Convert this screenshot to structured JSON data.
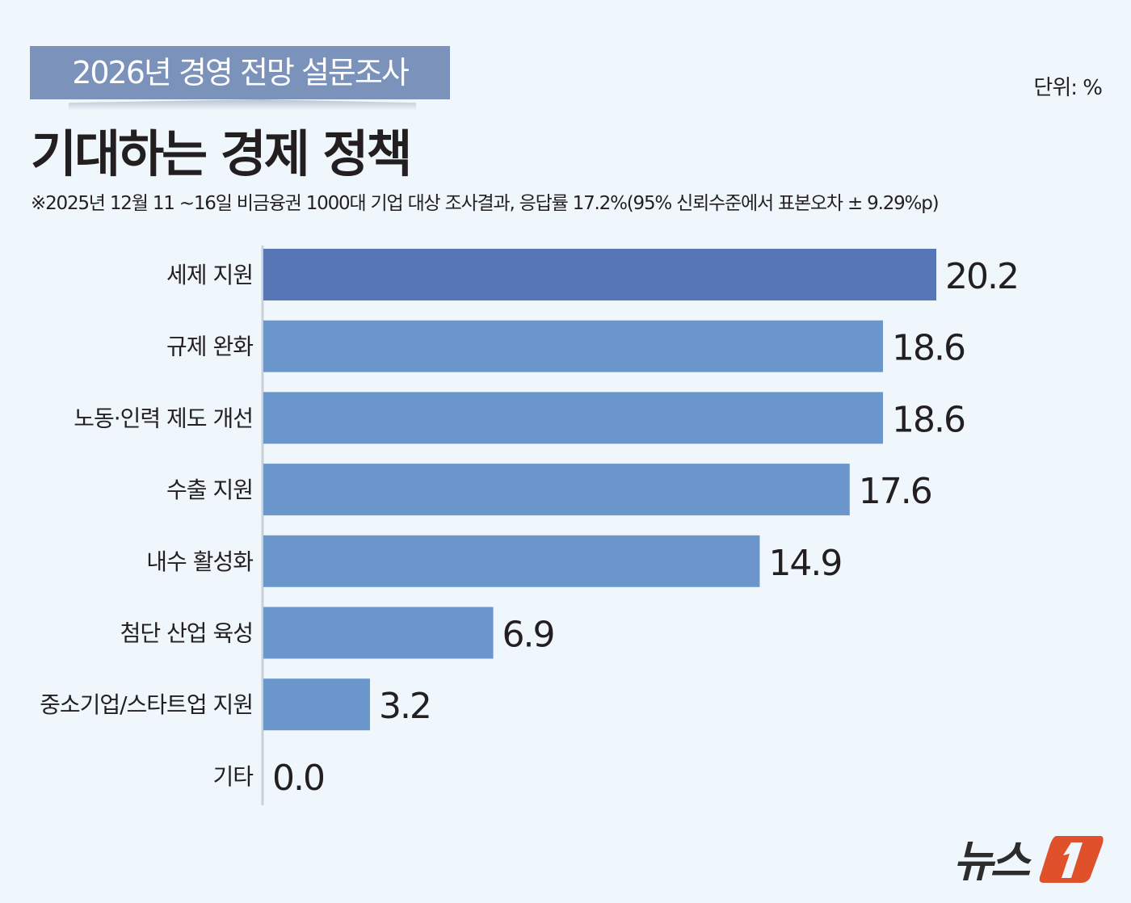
{
  "header": {
    "tag": "2026년 경영 전망 설문조사",
    "unit": "단위: %",
    "title": "기대하는 경제 정책",
    "note": "※2025년 12월 11 ~16일 비금융권 1000대 기업 대상 조사결과, 응답률 17.2%(95% 신뢰수준에서 표본오차 ± 9.29%p)"
  },
  "logo": {
    "text": "뉴스1",
    "brand_color": "#e0502a"
  },
  "chart_data": {
    "type": "bar",
    "orientation": "horizontal",
    "categories": [
      "세제 지원",
      "규제 완화",
      "노동·인력 제도 개선",
      "수출 지원",
      "내수 활성화",
      "첨단 산업 육성",
      "중소기업/스타트업 지원",
      "기타"
    ],
    "values": [
      20.2,
      18.6,
      18.6,
      17.6,
      14.9,
      6.9,
      3.2,
      0.0
    ],
    "value_labels": [
      "20.2",
      "18.6",
      "18.6",
      "17.6",
      "14.9",
      "6.9",
      "3.2",
      "0.0"
    ],
    "highlight_color": "#5676b6",
    "bar_color": "#6a96cc",
    "grid": false,
    "legend": "none"
  }
}
